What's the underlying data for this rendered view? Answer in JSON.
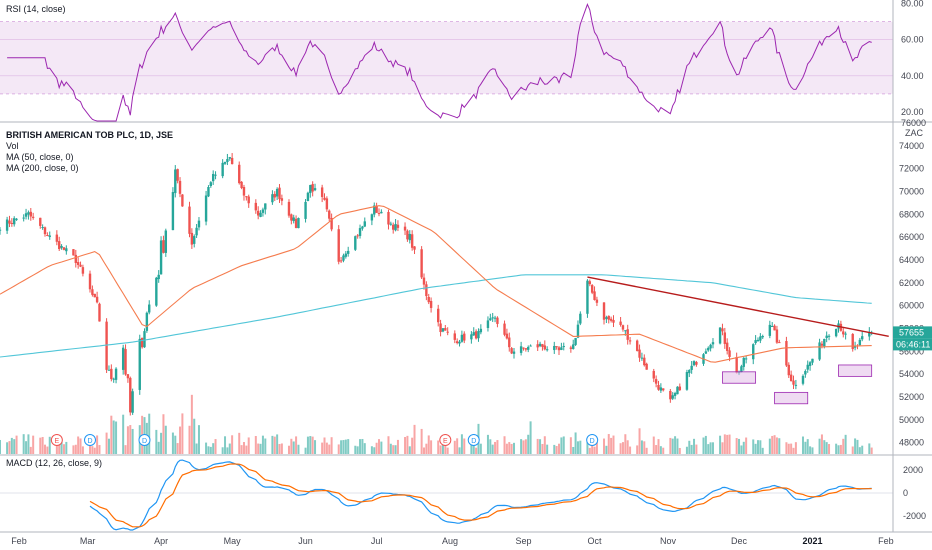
{
  "chart_data": {
    "type": "candlestick",
    "symbol": "BRITISH AMERICAN TOB PLC, 1D, JSE",
    "currency": "ZAC",
    "x_labels": [
      "Feb",
      "Mar",
      "Apr",
      "May",
      "Jun",
      "Jul",
      "Aug",
      "Sep",
      "Oct",
      "Nov",
      "Dec",
      "2021",
      "Feb"
    ],
    "price_axis": {
      "ticks": [
        48000,
        50000,
        52000,
        54000,
        56000,
        58000,
        60000,
        62000,
        64000,
        66000,
        68000,
        70000,
        72000,
        74000,
        76000
      ],
      "top_label": "76000",
      "ylim": [
        47000,
        76000
      ]
    },
    "current_price": {
      "value": "57655",
      "countdown": "06:46:11"
    },
    "indicators": [
      {
        "label": "Vol",
        "color": "#26a69a"
      },
      {
        "label": "MA (50, close, 0)",
        "color": "#f57c4e"
      },
      {
        "label": "MA (200, close, 0)",
        "color": "#52c6d8"
      }
    ],
    "rsi": {
      "label": "RSI (14, close)",
      "ticks": [
        "80.00",
        "60.00",
        "40.00",
        "20.00"
      ],
      "ylim": [
        15,
        82
      ],
      "band": [
        30,
        70
      ],
      "color": "#9c27b0"
    },
    "macd": {
      "label": "MACD (12, 26, close, 9)",
      "ticks": [
        "2000",
        "0",
        "-2000"
      ],
      "ylim": [
        -3200,
        3200
      ],
      "macd_color": "#2196f3",
      "signal_color": "#ff6d00"
    },
    "event_markers": [
      "E",
      "D",
      "D",
      "E",
      "D",
      "D"
    ],
    "price_key_points": [
      {
        "date": "2020-01-24",
        "close": 67000
      },
      {
        "date": "2020-02-05",
        "close": 68000
      },
      {
        "date": "2020-02-14",
        "close": 66000
      },
      {
        "date": "2020-02-25",
        "close": 64000
      },
      {
        "date": "2020-03-05",
        "close": 60000
      },
      {
        "date": "2020-03-10",
        "close": 53500
      },
      {
        "date": "2020-03-16",
        "close": 56500
      },
      {
        "date": "2020-03-19",
        "close": 50500
      },
      {
        "date": "2020-03-24",
        "close": 57500
      },
      {
        "date": "2020-03-31",
        "close": 63500
      },
      {
        "date": "2020-04-07",
        "close": 71500
      },
      {
        "date": "2020-04-14",
        "close": 65500
      },
      {
        "date": "2020-04-22",
        "close": 71000
      },
      {
        "date": "2020-04-30",
        "close": 73000
      },
      {
        "date": "2020-05-05",
        "close": 70000
      },
      {
        "date": "2020-05-12",
        "close": 68000
      },
      {
        "date": "2020-05-20",
        "close": 70000
      },
      {
        "date": "2020-05-28",
        "close": 67000
      },
      {
        "date": "2020-06-03",
        "close": 70500
      },
      {
        "date": "2020-06-09",
        "close": 69000
      },
      {
        "date": "2020-06-15",
        "close": 64000
      },
      {
        "date": "2020-06-22",
        "close": 66000
      },
      {
        "date": "2020-06-30",
        "close": 68500
      },
      {
        "date": "2020-07-08",
        "close": 67000
      },
      {
        "date": "2020-07-15",
        "close": 66000
      },
      {
        "date": "2020-07-22",
        "close": 61000
      },
      {
        "date": "2020-07-28",
        "close": 58000
      },
      {
        "date": "2020-08-03",
        "close": 57000
      },
      {
        "date": "2020-08-13",
        "close": 57500
      },
      {
        "date": "2020-08-20",
        "close": 59000
      },
      {
        "date": "2020-08-27",
        "close": 56000
      },
      {
        "date": "2020-09-08",
        "close": 56500
      },
      {
        "date": "2020-09-16",
        "close": 56000
      },
      {
        "date": "2020-09-22",
        "close": 56500
      },
      {
        "date": "2020-09-28",
        "close": 62000
      },
      {
        "date": "2020-10-05",
        "close": 59000
      },
      {
        "date": "2020-10-13",
        "close": 58000
      },
      {
        "date": "2020-10-19",
        "close": 56000
      },
      {
        "date": "2020-10-26",
        "close": 53500
      },
      {
        "date": "2020-11-02",
        "close": 51500
      },
      {
        "date": "2020-11-09",
        "close": 54000
      },
      {
        "date": "2020-11-16",
        "close": 56000
      },
      {
        "date": "2020-11-23",
        "close": 58000
      },
      {
        "date": "2020-11-30",
        "close": 54000
      },
      {
        "date": "2020-12-07",
        "close": 56500
      },
      {
        "date": "2020-12-14",
        "close": 58500
      },
      {
        "date": "2020-12-18",
        "close": 56500
      },
      {
        "date": "2020-12-24",
        "close": 53000
      },
      {
        "date": "2020-12-31",
        "close": 55000
      },
      {
        "date": "2021-01-07",
        "close": 57500
      },
      {
        "date": "2021-01-12",
        "close": 58500
      },
      {
        "date": "2021-01-18",
        "close": 56000
      },
      {
        "date": "2021-01-22",
        "close": 57000
      },
      {
        "date": "2021-01-26",
        "close": 57655
      }
    ],
    "ma50": [
      {
        "date": "2020-01-24",
        "value": 61000
      },
      {
        "date": "2020-02-14",
        "value": 63500
      },
      {
        "date": "2020-03-05",
        "value": 64800
      },
      {
        "date": "2020-03-25",
        "value": 58000
      },
      {
        "date": "2020-04-14",
        "value": 61500
      },
      {
        "date": "2020-05-05",
        "value": 63500
      },
      {
        "date": "2020-05-28",
        "value": 65000
      },
      {
        "date": "2020-06-15",
        "value": 68000
      },
      {
        "date": "2020-07-03",
        "value": 68800
      },
      {
        "date": "2020-07-25",
        "value": 66500
      },
      {
        "date": "2020-08-20",
        "value": 61500
      },
      {
        "date": "2020-09-22",
        "value": 57300
      },
      {
        "date": "2020-10-20",
        "value": 57500
      },
      {
        "date": "2020-11-20",
        "value": 55000
      },
      {
        "date": "2020-12-20",
        "value": 56300
      },
      {
        "date": "2021-01-26",
        "value": 56500
      }
    ],
    "ma200": [
      {
        "date": "2020-01-24",
        "value": 55500
      },
      {
        "date": "2020-03-20",
        "value": 56800
      },
      {
        "date": "2020-05-20",
        "value": 59000
      },
      {
        "date": "2020-07-20",
        "value": 61500
      },
      {
        "date": "2020-09-01",
        "value": 62700
      },
      {
        "date": "2020-10-05",
        "value": 62700
      },
      {
        "date": "2020-11-20",
        "value": 62000
      },
      {
        "date": "2020-12-25",
        "value": 60700
      },
      {
        "date": "2021-01-26",
        "value": 60200
      }
    ],
    "trendline": [
      {
        "date": "2020-09-28",
        "value": 62500
      },
      {
        "date": "2021-01-26",
        "value": 57600
      }
    ]
  }
}
